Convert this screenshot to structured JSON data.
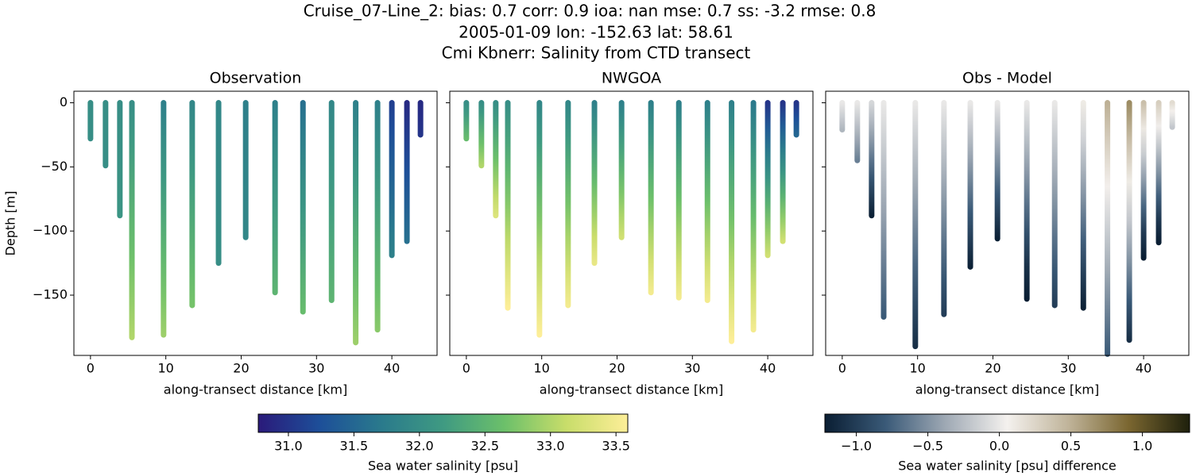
{
  "suptitle": [
    "Cruise_07-Line_2: bias: 0.7  corr: 0.9  ioa: nan  mse: 0.7  ss: -3.2  rmse: 0.8",
    "2005-01-09 lon: -152.63 lat: 58.61",
    "Cmi Kbnerr: Salinity from CTD transect"
  ],
  "chart_data": [
    {
      "type": "profile",
      "title": "Observation",
      "xlabel": "along-transect distance [km]",
      "ylabel": "Depth [m]",
      "cmap": "haline",
      "xlim": [
        -2.2,
        46
      ],
      "ylim": [
        -197,
        9
      ],
      "xticks": [
        0,
        10,
        20,
        30,
        40
      ],
      "yticks": [
        0,
        {
          "value": -50,
          "label": "−50"
        },
        {
          "value": -100,
          "label": "−100"
        },
        {
          "value": -150,
          "label": "−150"
        }
      ],
      "ytick_labels": true,
      "x": [
        0,
        2,
        3.9,
        5.5,
        9.7,
        13.5,
        17,
        20.6,
        24.5,
        28.2,
        32,
        35.2,
        38.1,
        40,
        42,
        43.8
      ],
      "depth": [
        -28,
        -49,
        -88,
        -183,
        -181,
        -158,
        -125,
        -105,
        -148,
        -163,
        -154,
        -187,
        -177,
        -119,
        -108,
        -25
      ],
      "surface": [
        32.0,
        32.0,
        32.0,
        32.0,
        31.8,
        31.9,
        31.9,
        31.8,
        31.8,
        31.6,
        31.9,
        31.8,
        31.8,
        31.1,
        30.9,
        30.9
      ],
      "bottom": [
        32.0,
        32.0,
        32.1,
        33.0,
        32.9,
        32.7,
        32.0,
        31.9,
        32.5,
        32.6,
        32.5,
        32.9,
        32.8,
        31.8,
        31.6,
        31.0
      ]
    },
    {
      "type": "profile",
      "title": "NWGOA",
      "xlabel": "along-transect distance [km]",
      "cmap": "haline",
      "xlim": [
        -2.2,
        46
      ],
      "ylim": [
        -197,
        9
      ],
      "xticks": [
        0,
        10,
        20,
        30,
        40
      ],
      "yticks": [
        0,
        -50,
        -100,
        -150
      ],
      "ytick_labels": false,
      "x": [
        0,
        2,
        3.9,
        5.5,
        9.7,
        13.5,
        17,
        20.6,
        24.5,
        28.2,
        32,
        35.2,
        38.1,
        40,
        42,
        43.8
      ],
      "depth": [
        -28,
        -49,
        -88,
        -160,
        -181,
        -158,
        -125,
        -105,
        -148,
        -152,
        -154,
        -186,
        -177,
        -119,
        -108,
        -25
      ],
      "surface": [
        32.0,
        32.0,
        32.0,
        32.0,
        31.9,
        31.9,
        31.8,
        31.8,
        31.8,
        31.8,
        31.8,
        31.8,
        31.7,
        31.0,
        31.0,
        31.0
      ],
      "bottom": [
        32.6,
        33.0,
        33.3,
        33.6,
        33.6,
        33.5,
        33.4,
        33.2,
        33.5,
        33.5,
        33.5,
        33.6,
        33.5,
        33.2,
        33.2,
        31.5
      ]
    },
    {
      "type": "profile",
      "title": "Obs - Model",
      "xlabel": "along-transect distance [km]",
      "cmap": "diff",
      "xlim": [
        -2.2,
        46
      ],
      "ylim": [
        -197,
        9
      ],
      "xticks": [
        0,
        10,
        20,
        30,
        40
      ],
      "yticks": [
        0,
        -50,
        -100,
        -150
      ],
      "ytick_labels": false,
      "x": [
        0,
        2,
        3.9,
        5.5,
        9.7,
        13.5,
        17,
        20.6,
        24.5,
        28.2,
        32,
        35.2,
        38.1,
        40,
        42,
        43.8
      ],
      "depth": [
        -21,
        -45,
        -88,
        -167,
        -190,
        -165,
        -128,
        -106,
        -153,
        -158,
        -160,
        -196,
        -185,
        -121,
        -109,
        -19
      ],
      "surface": [
        0,
        0,
        -0.1,
        0,
        0,
        0,
        0,
        0,
        0,
        0,
        0.1,
        0.5,
        0.7,
        0.4,
        0.3,
        0.2
      ],
      "bottom": [
        -0.3,
        -0.6,
        -1.2,
        -0.8,
        -1.1,
        -1.0,
        -1.2,
        -1.2,
        -1.3,
        -1.0,
        -1.2,
        -0.8,
        -1.1,
        -1.3,
        -1.3,
        -0.2
      ]
    }
  ],
  "colorbars": [
    {
      "cmap": "haline",
      "label": "Sea water salinity [psu]",
      "lim": [
        30.77,
        33.59
      ],
      "colors": [
        "#2a1a7a",
        "#1d4f99",
        "#2a7a8c",
        "#3f9a82",
        "#6cc06a",
        "#c8dd6a",
        "#fdee98"
      ],
      "ticks": [
        {
          "value": 31,
          "label": "31.0"
        },
        31.5,
        {
          "value": 32,
          "label": "32.0"
        },
        32.5,
        {
          "value": 33,
          "label": "33.0"
        },
        33.5
      ]
    },
    {
      "cmap": "diff",
      "label": "Sea water salinity [psu] difference",
      "lim": [
        -1.22,
        1.33
      ],
      "colors": [
        "#0a1e33",
        "#3a5a78",
        "#a0aab5",
        "#f4f1ee",
        "#c0b49a",
        "#7a6630",
        "#1e200c"
      ],
      "ticks": [
        {
          "value": -1,
          "label": "−1.0"
        },
        {
          "value": -0.5,
          "label": "−0.5"
        },
        {
          "value": 0,
          "label": "0.0"
        },
        0.5,
        {
          "value": 1,
          "label": "1.0"
        }
      ]
    }
  ]
}
